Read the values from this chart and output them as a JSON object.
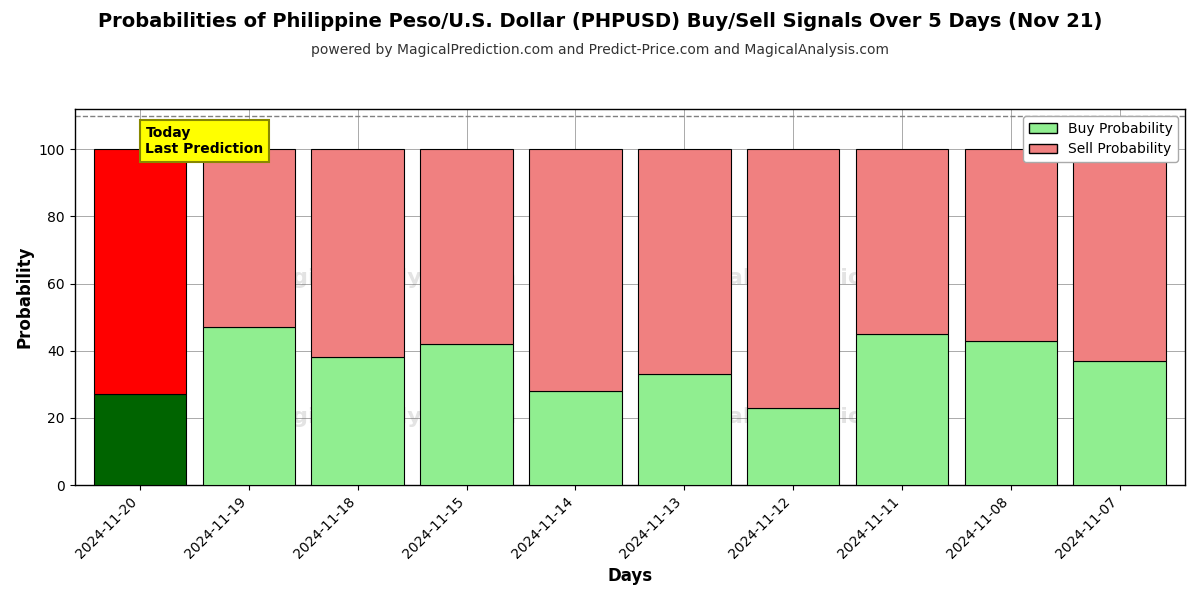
{
  "title": "Probabilities of Philippine Peso/U.S. Dollar (PHPUSD) Buy/Sell Signals Over 5 Days (Nov 21)",
  "subtitle": "powered by MagicalPrediction.com and Predict-Price.com and MagicalAnalysis.com",
  "xlabel": "Days",
  "ylabel": "Probability",
  "dates": [
    "2024-11-20",
    "2024-11-19",
    "2024-11-18",
    "2024-11-15",
    "2024-11-14",
    "2024-11-13",
    "2024-11-12",
    "2024-11-11",
    "2024-11-08",
    "2024-11-07"
  ],
  "buy_values": [
    27,
    47,
    38,
    42,
    28,
    33,
    23,
    45,
    43,
    37
  ],
  "sell_values": [
    73,
    53,
    62,
    58,
    72,
    67,
    77,
    55,
    57,
    63
  ],
  "today_buy_color": "#006400",
  "today_sell_color": "#ff0000",
  "buy_color": "#90ee90",
  "sell_color": "#f08080",
  "today_label_bg": "#ffff00",
  "today_label_text": "Today\nLast Prediction",
  "legend_buy": "Buy Probability",
  "legend_sell": "Sell Probability",
  "ylim": [
    0,
    112
  ],
  "dashed_line_y": 110,
  "grid_color": "#aaaaaa",
  "bar_edge_color": "#000000",
  "bar_width": 0.85,
  "title_fontsize": 14,
  "subtitle_fontsize": 10,
  "axis_label_fontsize": 12,
  "tick_fontsize": 10
}
